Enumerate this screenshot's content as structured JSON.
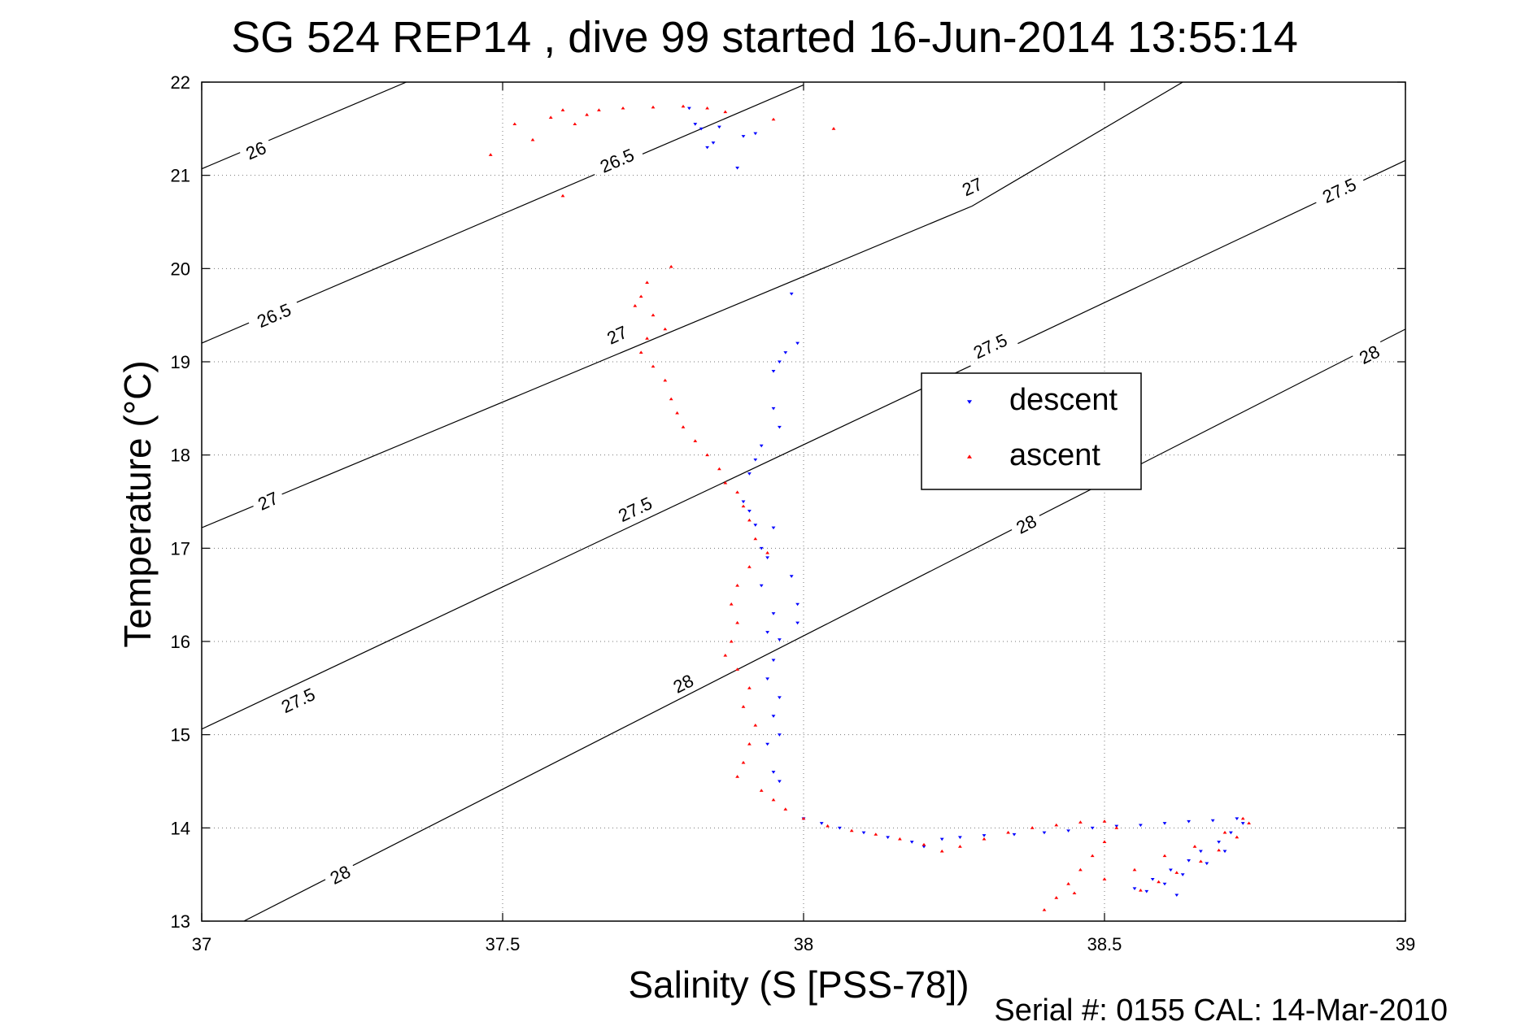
{
  "chart_data": {
    "type": "scatter",
    "title": "SG 524   REP14  , dive 99 started 16-Jun-2014 13:55:14",
    "xlabel": "Salinity (S [PSS-78])",
    "ylabel": "Temperature (°C)",
    "xlim": [
      37,
      39
    ],
    "ylim": [
      13,
      22
    ],
    "x_ticks": [
      "37",
      "37.5",
      "38",
      "38.5",
      "39"
    ],
    "y_ticks": [
      "13",
      "14",
      "15",
      "16",
      "17",
      "18",
      "19",
      "20",
      "21",
      "22"
    ],
    "grid": true,
    "legend_position": "center-right",
    "footer": "Serial #: 0155  CAL: 14-Mar-2010",
    "density_contours": [
      {
        "label": "26",
        "line": [
          [
            37.0,
            21.07
          ],
          [
            37.34,
            22.0
          ]
        ],
        "label_at": [
          [
            37.09,
            21.27
          ]
        ]
      },
      {
        "label": "26.5",
        "line": [
          [
            37.0,
            19.2
          ],
          [
            38.0,
            21.97
          ]
        ],
        "label_at": [
          [
            37.12,
            19.5
          ],
          [
            37.69,
            21.16
          ]
        ]
      },
      {
        "label": "27",
        "line": [
          [
            37.0,
            17.22
          ],
          [
            38.28,
            20.67
          ],
          [
            38.63,
            22.0
          ]
        ],
        "label_at": [
          [
            37.11,
            17.51
          ],
          [
            37.69,
            19.29
          ],
          [
            38.28,
            20.88
          ]
        ]
      },
      {
        "label": "27.5",
        "line": [
          [
            37.0,
            15.06
          ],
          [
            39.0,
            21.16
          ]
        ],
        "label_at": [
          [
            37.16,
            15.37
          ],
          [
            37.72,
            17.42
          ],
          [
            38.31,
            19.17
          ],
          [
            38.89,
            20.84
          ]
        ]
      },
      {
        "label": "28",
        "line": [
          [
            37.07,
            13.0
          ],
          [
            39.0,
            19.35
          ]
        ],
        "label_at": [
          [
            37.23,
            13.5
          ],
          [
            37.8,
            15.55
          ],
          [
            38.37,
            17.26
          ],
          [
            38.94,
            19.08
          ]
        ]
      }
    ],
    "series": [
      {
        "name": "descent",
        "color": "#0000ff",
        "marker": "triangle-down",
        "points": [
          [
            37.81,
            21.72
          ],
          [
            37.82,
            21.55
          ],
          [
            37.83,
            21.5
          ],
          [
            37.84,
            21.3
          ],
          [
            37.85,
            21.35
          ],
          [
            37.86,
            21.52
          ],
          [
            37.89,
            21.08
          ],
          [
            37.9,
            21.42
          ],
          [
            37.92,
            21.45
          ],
          [
            37.98,
            19.73
          ],
          [
            37.99,
            19.2
          ],
          [
            37.97,
            19.1
          ],
          [
            37.96,
            19.0
          ],
          [
            37.95,
            18.9
          ],
          [
            37.95,
            18.5
          ],
          [
            37.96,
            18.3
          ],
          [
            37.93,
            18.1
          ],
          [
            37.92,
            17.95
          ],
          [
            37.91,
            17.8
          ],
          [
            37.9,
            17.5
          ],
          [
            37.91,
            17.4
          ],
          [
            37.92,
            17.25
          ],
          [
            37.93,
            17.0
          ],
          [
            37.95,
            17.22
          ],
          [
            37.94,
            16.9
          ],
          [
            37.93,
            16.6
          ],
          [
            37.95,
            16.3
          ],
          [
            37.94,
            16.1
          ],
          [
            37.96,
            16.02
          ],
          [
            37.95,
            15.8
          ],
          [
            37.94,
            15.6
          ],
          [
            37.96,
            15.4
          ],
          [
            37.95,
            15.2
          ],
          [
            37.96,
            15.0
          ],
          [
            37.94,
            14.9
          ],
          [
            37.95,
            14.6
          ],
          [
            37.96,
            14.5
          ],
          [
            37.98,
            16.7
          ],
          [
            37.99,
            16.4
          ],
          [
            37.99,
            16.2
          ],
          [
            38.0,
            14.1
          ],
          [
            38.03,
            14.05
          ],
          [
            38.06,
            14.0
          ],
          [
            38.1,
            13.95
          ],
          [
            38.14,
            13.9
          ],
          [
            38.18,
            13.85
          ],
          [
            38.2,
            13.8
          ],
          [
            38.23,
            13.88
          ],
          [
            38.26,
            13.9
          ],
          [
            38.3,
            13.92
          ],
          [
            38.35,
            13.93
          ],
          [
            38.4,
            13.95
          ],
          [
            38.44,
            13.97
          ],
          [
            38.48,
            14.0
          ],
          [
            38.52,
            14.02
          ],
          [
            38.56,
            14.03
          ],
          [
            38.6,
            14.05
          ],
          [
            38.64,
            14.07
          ],
          [
            38.68,
            14.08
          ],
          [
            38.72,
            14.1
          ],
          [
            38.55,
            13.35
          ],
          [
            38.58,
            13.45
          ],
          [
            38.61,
            13.55
          ],
          [
            38.64,
            13.65
          ],
          [
            38.66,
            13.75
          ],
          [
            38.69,
            13.85
          ],
          [
            38.71,
            13.95
          ],
          [
            38.73,
            14.05
          ],
          [
            38.6,
            13.4
          ],
          [
            38.63,
            13.5
          ],
          [
            38.67,
            13.62
          ],
          [
            38.7,
            13.75
          ],
          [
            38.57,
            13.32
          ],
          [
            38.62,
            13.28
          ]
        ]
      },
      {
        "name": "ascent",
        "color": "#ff0000",
        "marker": "triangle-up",
        "points": [
          [
            37.48,
            21.22
          ],
          [
            37.52,
            21.55
          ],
          [
            37.55,
            21.38
          ],
          [
            37.58,
            21.62
          ],
          [
            37.6,
            21.7
          ],
          [
            37.62,
            21.55
          ],
          [
            37.64,
            21.65
          ],
          [
            37.66,
            21.7
          ],
          [
            37.7,
            21.72
          ],
          [
            37.75,
            21.73
          ],
          [
            37.8,
            21.74
          ],
          [
            37.84,
            21.72
          ],
          [
            37.87,
            21.68
          ],
          [
            37.95,
            21.6
          ],
          [
            38.05,
            21.5
          ],
          [
            37.6,
            20.78
          ],
          [
            37.78,
            20.02
          ],
          [
            37.74,
            19.85
          ],
          [
            37.73,
            19.7
          ],
          [
            37.72,
            19.6
          ],
          [
            37.75,
            19.5
          ],
          [
            37.77,
            19.35
          ],
          [
            37.74,
            19.25
          ],
          [
            37.73,
            19.1
          ],
          [
            37.75,
            18.95
          ],
          [
            37.77,
            18.8
          ],
          [
            37.78,
            18.6
          ],
          [
            37.79,
            18.45
          ],
          [
            37.8,
            18.3
          ],
          [
            37.82,
            18.15
          ],
          [
            37.84,
            18.0
          ],
          [
            37.86,
            17.85
          ],
          [
            37.87,
            17.7
          ],
          [
            37.89,
            17.6
          ],
          [
            37.9,
            17.45
          ],
          [
            37.91,
            17.3
          ],
          [
            37.92,
            17.1
          ],
          [
            37.94,
            16.95
          ],
          [
            37.91,
            16.8
          ],
          [
            37.89,
            16.6
          ],
          [
            37.88,
            16.4
          ],
          [
            37.89,
            16.2
          ],
          [
            37.88,
            16.0
          ],
          [
            37.87,
            15.85
          ],
          [
            37.89,
            15.7
          ],
          [
            37.91,
            15.5
          ],
          [
            37.9,
            15.3
          ],
          [
            37.92,
            15.1
          ],
          [
            37.91,
            14.9
          ],
          [
            37.9,
            14.7
          ],
          [
            37.89,
            14.55
          ],
          [
            37.93,
            14.4
          ],
          [
            37.95,
            14.3
          ],
          [
            37.97,
            14.2
          ],
          [
            38.0,
            14.1
          ],
          [
            38.04,
            14.02
          ],
          [
            38.08,
            13.97
          ],
          [
            38.12,
            13.93
          ],
          [
            38.16,
            13.88
          ],
          [
            38.2,
            13.82
          ],
          [
            38.23,
            13.75
          ],
          [
            38.26,
            13.8
          ],
          [
            38.3,
            13.88
          ],
          [
            38.34,
            13.95
          ],
          [
            38.38,
            14.0
          ],
          [
            38.42,
            14.03
          ],
          [
            38.46,
            14.06
          ],
          [
            38.5,
            14.07
          ],
          [
            38.52,
            14.0
          ],
          [
            38.5,
            13.85
          ],
          [
            38.48,
            13.7
          ],
          [
            38.46,
            13.55
          ],
          [
            38.44,
            13.4
          ],
          [
            38.42,
            13.25
          ],
          [
            38.4,
            13.12
          ],
          [
            38.45,
            13.3
          ],
          [
            38.5,
            13.45
          ],
          [
            38.55,
            13.55
          ],
          [
            38.6,
            13.7
          ],
          [
            38.65,
            13.8
          ],
          [
            38.7,
            13.95
          ],
          [
            38.73,
            14.1
          ],
          [
            38.56,
            13.33
          ],
          [
            38.59,
            13.42
          ],
          [
            38.62,
            13.52
          ],
          [
            38.66,
            13.64
          ],
          [
            38.69,
            13.76
          ],
          [
            38.72,
            13.9
          ],
          [
            38.74,
            14.05
          ]
        ]
      }
    ]
  }
}
